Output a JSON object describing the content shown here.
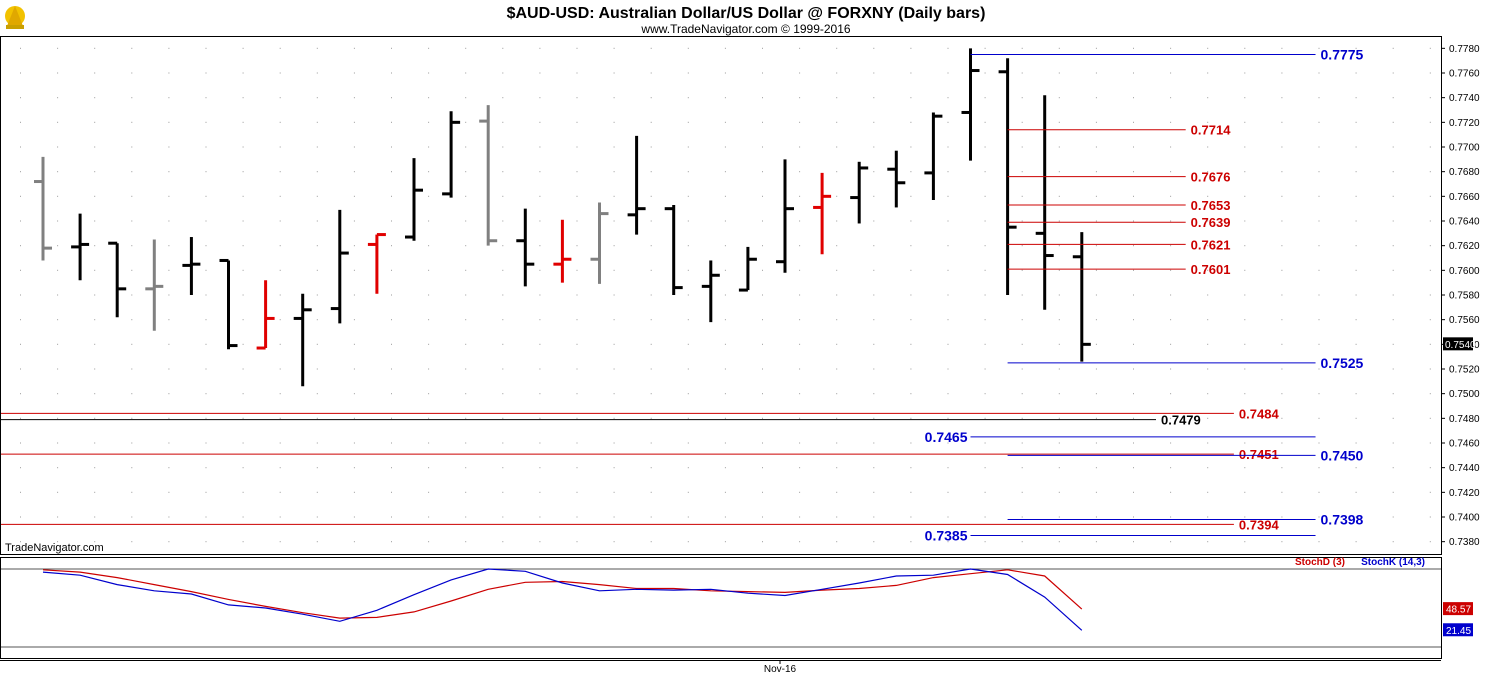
{
  "header": {
    "title": "$AUD-USD:  Australian Dollar/US Dollar @ FORXNY  (Daily bars)",
    "subtitle": "www.TradeNavigator.com © 1999-2016"
  },
  "watermark": "TradeNavigator.com",
  "xaxis_label": "Nov-16",
  "colors": {
    "up": "#000000",
    "neutral": "#808080",
    "down": "#e00000",
    "blue": "#0000cc",
    "red": "#cc0000"
  },
  "chart_data": [
    {
      "type": "ohlc",
      "ylim": [
        0.737,
        0.779
      ],
      "yticks": [
        "0.7780",
        "0.7760",
        "0.7740",
        "0.7720",
        "0.7700",
        "0.7680",
        "0.7660",
        "0.7640",
        "0.7620",
        "0.7600",
        "0.7580",
        "0.7560",
        "0.7540",
        "0.7520",
        "0.7500",
        "0.7480",
        "0.7460",
        "0.7440",
        "0.7420",
        "0.7400",
        "0.7380"
      ],
      "last_price": "0.7540",
      "bars": [
        {
          "o": 0.7672,
          "h": 0.7692,
          "l": 0.7608,
          "c": 0.7618,
          "color": "neutral"
        },
        {
          "o": 0.7619,
          "h": 0.7646,
          "l": 0.7592,
          "c": 0.7621,
          "color": "up"
        },
        {
          "o": 0.7622,
          "h": 0.7622,
          "l": 0.7562,
          "c": 0.7585,
          "color": "up"
        },
        {
          "o": 0.7585,
          "h": 0.7625,
          "l": 0.7551,
          "c": 0.7587,
          "color": "neutral"
        },
        {
          "o": 0.7604,
          "h": 0.7627,
          "l": 0.758,
          "c": 0.7605,
          "color": "up"
        },
        {
          "o": 0.7608,
          "h": 0.7608,
          "l": 0.7536,
          "c": 0.7539,
          "color": "up"
        },
        {
          "o": 0.7537,
          "h": 0.7592,
          "l": 0.7537,
          "c": 0.7561,
          "color": "down"
        },
        {
          "o": 0.7561,
          "h": 0.7581,
          "l": 0.7506,
          "c": 0.7568,
          "color": "up"
        },
        {
          "o": 0.7569,
          "h": 0.7649,
          "l": 0.7557,
          "c": 0.7614,
          "color": "up"
        },
        {
          "o": 0.7621,
          "h": 0.7629,
          "l": 0.7581,
          "c": 0.7629,
          "color": "down"
        },
        {
          "o": 0.7627,
          "h": 0.7691,
          "l": 0.7624,
          "c": 0.7665,
          "color": "up"
        },
        {
          "o": 0.7662,
          "h": 0.7729,
          "l": 0.7659,
          "c": 0.772,
          "color": "up"
        },
        {
          "o": 0.7721,
          "h": 0.7734,
          "l": 0.762,
          "c": 0.7624,
          "color": "neutral"
        },
        {
          "o": 0.7624,
          "h": 0.765,
          "l": 0.7587,
          "c": 0.7605,
          "color": "up"
        },
        {
          "o": 0.7605,
          "h": 0.7641,
          "l": 0.759,
          "c": 0.7609,
          "color": "down"
        },
        {
          "o": 0.7609,
          "h": 0.7655,
          "l": 0.7589,
          "c": 0.7646,
          "color": "neutral"
        },
        {
          "o": 0.7645,
          "h": 0.7709,
          "l": 0.7629,
          "c": 0.765,
          "color": "up"
        },
        {
          "o": 0.765,
          "h": 0.7653,
          "l": 0.758,
          "c": 0.7586,
          "color": "up"
        },
        {
          "o": 0.7587,
          "h": 0.7608,
          "l": 0.7558,
          "c": 0.7596,
          "color": "up"
        },
        {
          "o": 0.7584,
          "h": 0.7619,
          "l": 0.7584,
          "c": 0.7609,
          "color": "up"
        },
        {
          "o": 0.7607,
          "h": 0.769,
          "l": 0.7598,
          "c": 0.765,
          "color": "up"
        },
        {
          "o": 0.7651,
          "h": 0.7679,
          "l": 0.7613,
          "c": 0.766,
          "color": "down"
        },
        {
          "o": 0.7659,
          "h": 0.7688,
          "l": 0.7638,
          "c": 0.7683,
          "color": "up"
        },
        {
          "o": 0.7682,
          "h": 0.7697,
          "l": 0.7651,
          "c": 0.7671,
          "color": "up"
        },
        {
          "o": 0.7679,
          "h": 0.7728,
          "l": 0.7657,
          "c": 0.7725,
          "color": "up"
        },
        {
          "o": 0.7728,
          "h": 0.778,
          "l": 0.7689,
          "c": 0.7762,
          "color": "up"
        },
        {
          "o": 0.7761,
          "h": 0.7772,
          "l": 0.758,
          "c": 0.7635,
          "color": "up"
        },
        {
          "o": 0.763,
          "h": 0.7742,
          "l": 0.7568,
          "c": 0.7612,
          "color": "up"
        },
        {
          "o": 0.7611,
          "h": 0.7631,
          "l": 0.7526,
          "c": 0.754,
          "color": "up"
        }
      ],
      "levels": [
        {
          "value": 0.7775,
          "label": "0.7775",
          "color": "blue",
          "x0": 25.0,
          "x1": 34.3,
          "side": "right"
        },
        {
          "value": 0.7714,
          "label": "0.7714",
          "color": "red",
          "x0": 26.0,
          "x1": 30.8,
          "side": "right"
        },
        {
          "value": 0.7676,
          "label": "0.7676",
          "color": "red",
          "x0": 26.0,
          "x1": 30.8,
          "side": "right"
        },
        {
          "value": 0.7653,
          "label": "0.7653",
          "color": "red",
          "x0": 26.0,
          "x1": 30.8,
          "side": "right"
        },
        {
          "value": 0.7639,
          "label": "0.7639",
          "color": "red",
          "x0": 26.0,
          "x1": 30.8,
          "side": "right"
        },
        {
          "value": 0.7621,
          "label": "0.7621",
          "color": "red",
          "x0": 26.0,
          "x1": 30.8,
          "side": "right"
        },
        {
          "value": 0.7601,
          "label": "0.7601",
          "color": "red",
          "x0": 26.0,
          "x1": 30.8,
          "side": "right"
        },
        {
          "value": 0.7525,
          "label": "0.7525",
          "color": "blue",
          "x0": 26.0,
          "x1": 34.3,
          "side": "right"
        },
        {
          "value": 0.7484,
          "label": "0.7484",
          "color": "red",
          "x0": -1.2,
          "x1": 32.1,
          "side": "right"
        },
        {
          "value": 0.7479,
          "label": "0.7479",
          "color": "up",
          "x0": -1.2,
          "x1": 30.0,
          "side": "right"
        },
        {
          "value": 0.7465,
          "label": "0.7465",
          "color": "blue",
          "x0": 25.0,
          "x1": 34.3,
          "side": "left"
        },
        {
          "value": 0.7451,
          "label": "0.7451",
          "color": "red",
          "x0": -1.2,
          "x1": 32.1,
          "side": "right"
        },
        {
          "value": 0.745,
          "label": "0.7450",
          "color": "blue",
          "x0": 26.0,
          "x1": 34.3,
          "side": "right"
        },
        {
          "value": 0.7398,
          "label": "0.7398",
          "color": "blue",
          "x0": 26.0,
          "x1": 34.3,
          "side": "right"
        },
        {
          "value": 0.7394,
          "label": "0.7394",
          "color": "red",
          "x0": -1.2,
          "x1": 32.1,
          "side": "right"
        },
        {
          "value": 0.7385,
          "label": "0.7385",
          "color": "blue",
          "x0": 25.0,
          "x1": 34.3,
          "side": "left"
        }
      ]
    },
    {
      "type": "line",
      "ylim": [
        0,
        100
      ],
      "series": [
        {
          "name": "StochD (3)",
          "color": "red",
          "last": "48.57",
          "values": [
            99,
            96,
            89,
            80,
            71,
            61,
            52,
            44,
            37,
            38,
            45,
            59,
            74,
            83,
            84,
            80,
            75,
            75,
            72,
            71,
            70,
            73,
            75,
            79,
            89,
            94,
            99,
            91,
            48.57
          ]
        },
        {
          "name": "StochK (14,3)",
          "color": "blue",
          "last": "21.45",
          "values": [
            96,
            92,
            80,
            72,
            68,
            54,
            50,
            42,
            33,
            47,
            67,
            86,
            100,
            97,
            82,
            72,
            74,
            73,
            74,
            69,
            66,
            74,
            82,
            91,
            92,
            100,
            93,
            64,
            21.45
          ]
        }
      ]
    }
  ]
}
